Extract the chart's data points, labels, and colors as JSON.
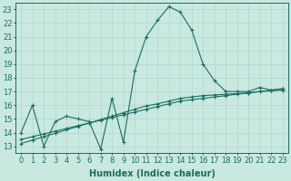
{
  "xlabel": "Humidex (Indice chaleur)",
  "xlim": [
    -0.5,
    23.5
  ],
  "ylim": [
    12.5,
    23.5
  ],
  "yticks": [
    13,
    14,
    15,
    16,
    17,
    18,
    19,
    20,
    21,
    22,
    23
  ],
  "xticks": [
    0,
    1,
    2,
    3,
    4,
    5,
    6,
    7,
    8,
    9,
    10,
    11,
    12,
    13,
    14,
    15,
    16,
    17,
    18,
    19,
    20,
    21,
    22,
    23
  ],
  "bg_color": "#c8e8e0",
  "line_color": "#1a6e60",
  "line1_y": [
    14.0,
    16.0,
    13.0,
    14.8,
    15.2,
    15.0,
    14.8,
    12.8,
    16.5,
    13.3,
    18.5,
    21.0,
    22.2,
    23.2,
    22.8,
    21.5,
    19.0,
    17.8,
    17.0,
    17.0,
    17.0,
    17.3,
    17.1,
    17.2
  ],
  "line2_y": [
    13.5,
    13.7,
    13.9,
    14.1,
    14.3,
    14.5,
    14.7,
    14.9,
    15.1,
    15.3,
    15.5,
    15.7,
    15.9,
    16.1,
    16.3,
    16.4,
    16.5,
    16.6,
    16.7,
    16.8,
    16.9,
    17.0,
    17.1,
    17.2
  ],
  "line3_y": [
    13.2,
    13.45,
    13.7,
    13.95,
    14.2,
    14.45,
    14.7,
    14.95,
    15.2,
    15.45,
    15.7,
    15.95,
    16.1,
    16.3,
    16.5,
    16.6,
    16.7,
    16.75,
    16.8,
    16.85,
    16.9,
    17.0,
    17.05,
    17.1
  ],
  "grid_color": "#b0d8cc",
  "tick_fontsize": 6,
  "xlabel_fontsize": 7
}
